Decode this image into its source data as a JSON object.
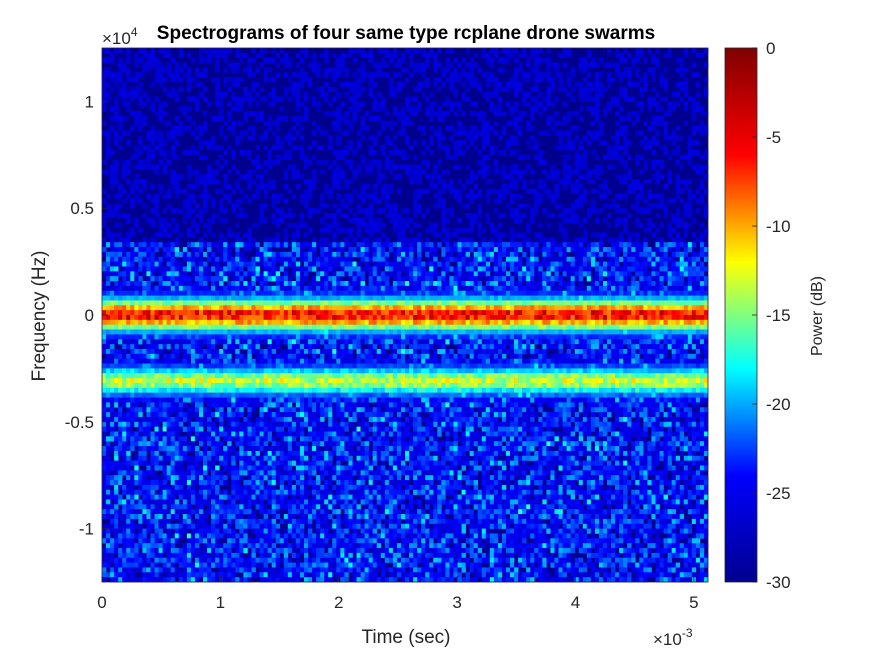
{
  "chart_data": {
    "type": "heatmap",
    "title": "Spectrograms of four same type rcplane drone swarms",
    "xlabel": "Time (sec)",
    "ylabel": "Frequency (Hz)",
    "x_exponent_label": "×10",
    "x_exponent": "-3",
    "y_exponent_label": "×10",
    "y_exponent": "4",
    "xlim": [
      0,
      5.12
    ],
    "ylim": [
      -1.25,
      1.25
    ],
    "x_ticks": [
      "0",
      "1",
      "2",
      "3",
      "4",
      "5"
    ],
    "x_tick_values": [
      0,
      1,
      2,
      3,
      4,
      5
    ],
    "y_ticks": [
      "1",
      "0.5",
      "0",
      "-0.5",
      "-1"
    ],
    "y_tick_values": [
      1,
      0.5,
      0,
      -0.5,
      -1
    ],
    "colorbar": {
      "label": "Power (dB)",
      "range": [
        -30,
        0
      ],
      "ticks": [
        "0",
        "-5",
        "-10",
        "-15",
        "-20",
        "-25",
        "-30"
      ],
      "tick_values": [
        0,
        -5,
        -10,
        -15,
        -20,
        -25,
        -30
      ],
      "colormap": "jet"
    },
    "bands": [
      {
        "center": 0.0,
        "half_width": 0.07,
        "peak_db": -4
      },
      {
        "center": -0.31,
        "half_width": 0.06,
        "peak_db": -13
      }
    ],
    "floor_db": -29,
    "colors": {
      "jet_stops": [
        "#00008f",
        "#0000ff",
        "#00ffff",
        "#ffff00",
        "#ff0000",
        "#800000"
      ]
    }
  }
}
